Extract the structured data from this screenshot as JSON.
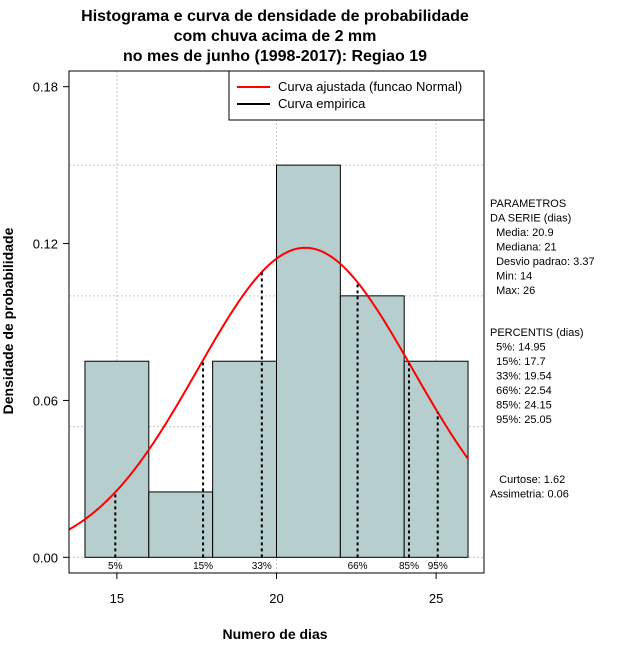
{
  "chart_data": {
    "type": "bar",
    "title": [
      "Histograma e curva de densidade de probabilidade",
      "com chuva acima de 2 mm",
      "no mes de junho (1998-2017): Regiao 19"
    ],
    "xlabel": "Numero de dias",
    "ylabel": "Densidade de probabilidade",
    "xlim": [
      13.5,
      26.5
    ],
    "ylim": [
      -0.006,
      0.186
    ],
    "xticks": [
      15,
      20,
      25
    ],
    "xtick_labels": [
      "15",
      "20",
      "25"
    ],
    "yticks": [
      0.0,
      0.06,
      0.12,
      0.18
    ],
    "ytick_labels": [
      "0.00",
      "0.06",
      "0.12",
      "0.18"
    ],
    "grid": true,
    "bins": [
      {
        "start": 14,
        "end": 16,
        "density": 0.075
      },
      {
        "start": 16,
        "end": 18,
        "density": 0.025
      },
      {
        "start": 18,
        "end": 20,
        "density": 0.075
      },
      {
        "start": 20,
        "end": 22,
        "density": 0.15
      },
      {
        "start": 22,
        "end": 24,
        "density": 0.1
      },
      {
        "start": 24,
        "end": 26,
        "density": 0.075
      }
    ],
    "bar_color": "#b6cece",
    "normal_curve": {
      "label": "Curva ajustada (funcao Normal)",
      "mean": 20.9,
      "sd": 3.37,
      "color": "#ff0000",
      "x_range": [
        13.5,
        26
      ]
    },
    "empirical_curve": {
      "label": "Curva empirica",
      "color": "#000000"
    },
    "percentiles": [
      {
        "label": "5%",
        "x": 14.95
      },
      {
        "label": "15%",
        "x": 17.7
      },
      {
        "label": "33%",
        "x": 19.54
      },
      {
        "label": "66%",
        "x": 22.54
      },
      {
        "label": "85%",
        "x": 24.15
      },
      {
        "label": "95%",
        "x": 25.05
      }
    ],
    "legend_position": "top-right"
  },
  "side_panel": {
    "params_lines": [
      "PARAMETROS",
      "DA SERIE (dias)",
      "  Media: 20.9",
      "  Mediana: 21",
      "  Desvio padrao: 3.37",
      "  Min: 14",
      "  Max: 26"
    ],
    "percentis_lines": [
      "PERCENTIS (dias)",
      "  5%: 14.95",
      "  15%: 17.7",
      "  33%: 19.54",
      "  66%: 22.54",
      "  85%: 24.15",
      "  95%: 25.05"
    ],
    "stats_lines": [
      "   Curtose: 1.62",
      "Assimetria: 0.06"
    ]
  }
}
